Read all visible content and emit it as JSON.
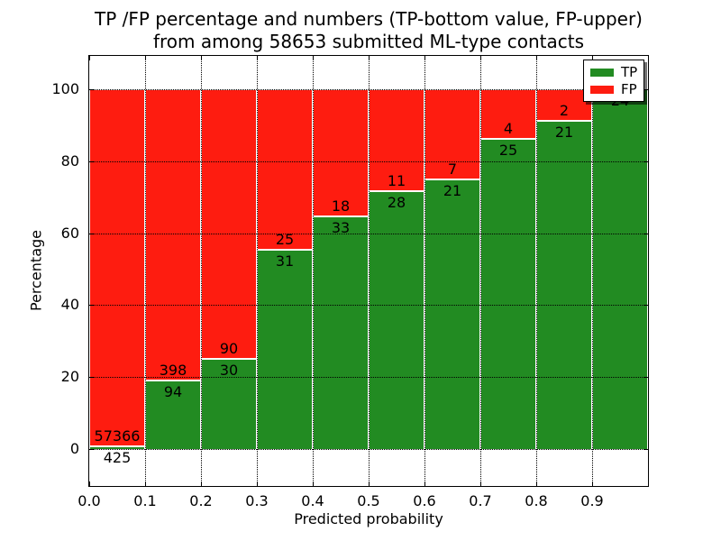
{
  "figure": {
    "title_line1": "TP /FP percentage and numbers (TP-bottom value, FP-upper)",
    "title_line2": "from among 58653 submitted ML-type contacts"
  },
  "chart_data": {
    "type": "bar",
    "bar_mode": "percent-stacked",
    "title": "TP /FP percentage and numbers (TP-bottom value, FP-upper)\nfrom among 58653 submitted ML-type contacts",
    "xlabel": "Predicted probability",
    "ylabel": "Percentage",
    "total_contacts": 58653,
    "x_tick_labels": [
      "0.0",
      "0.1",
      "0.2",
      "0.3",
      "0.4",
      "0.5",
      "0.6",
      "0.7",
      "0.8",
      "0.9"
    ],
    "y_tick_values": [
      0,
      20,
      40,
      60,
      80,
      100
    ],
    "xlim": [
      0.0,
      1.0
    ],
    "ylim": [
      -10.5,
      109.5
    ],
    "grid": true,
    "categories": [
      "0.0-0.1",
      "0.1-0.2",
      "0.2-0.3",
      "0.3-0.4",
      "0.4-0.5",
      "0.5-0.6",
      "0.6-0.7",
      "0.7-0.8",
      "0.8-0.9",
      "0.9-1.0"
    ],
    "series": [
      {
        "name": "TP",
        "color": "#228b22",
        "values": [
          425,
          94,
          30,
          31,
          33,
          28,
          21,
          25,
          21,
          24
        ]
      },
      {
        "name": "FP",
        "color": "#fe1c10",
        "values": [
          57366,
          398,
          90,
          25,
          18,
          11,
          7,
          4,
          2,
          0
        ]
      }
    ],
    "legend": {
      "position": "upper right",
      "entries": [
        {
          "label": "TP",
          "color": "#228b22"
        },
        {
          "label": "FP",
          "color": "#fe1c10"
        }
      ]
    }
  },
  "colors": {
    "tp": "#228b22",
    "fp": "#fe1c10",
    "grid": "#000000",
    "text": "#000000",
    "background": "#ffffff"
  }
}
